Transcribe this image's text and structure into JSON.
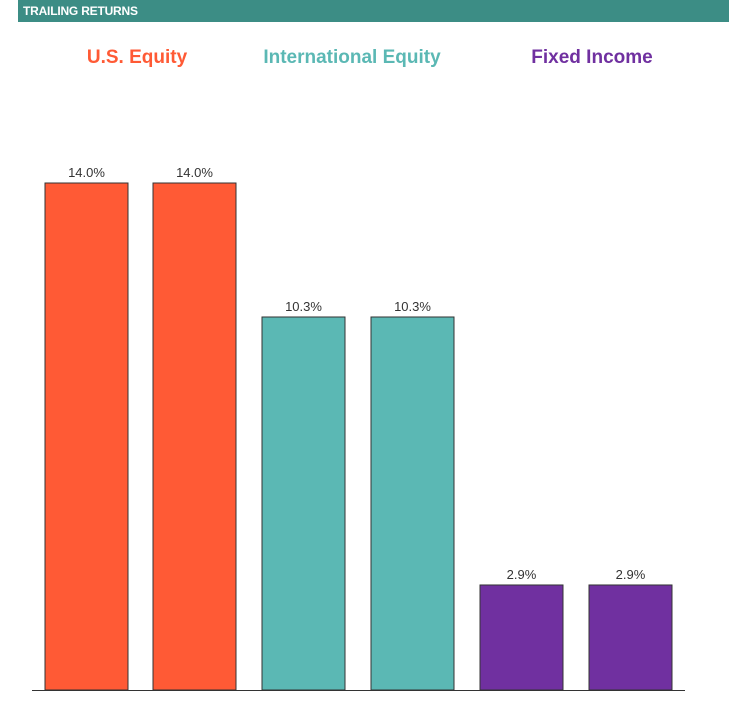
{
  "header": {
    "title": "TRAILING RETURNS"
  },
  "groups": [
    {
      "label": "U.S. Equity",
      "color": "#ff5a35"
    },
    {
      "label": "International Equity",
      "color": "#5bb8b4"
    },
    {
      "label": "Fixed Income",
      "color": "#7030a0"
    }
  ],
  "chart_data": {
    "type": "bar",
    "title": "TRAILING RETURNS",
    "categories": [
      "U.S. Equity",
      "U.S. Equity",
      "International Equity",
      "International Equity",
      "Fixed Income",
      "Fixed Income"
    ],
    "values": [
      14.0,
      14.0,
      10.3,
      10.3,
      2.9,
      2.9
    ],
    "data_labels": [
      "14.0%",
      "14.0%",
      "10.3%",
      "10.3%",
      "2.9%",
      "2.9%"
    ],
    "colors": [
      "#ff5a35",
      "#ff5a35",
      "#5bb8b4",
      "#5bb8b4",
      "#7030a0",
      "#7030a0"
    ],
    "ylim": [
      0,
      14.0
    ],
    "grid": false,
    "xlabel": "",
    "ylabel": ""
  }
}
